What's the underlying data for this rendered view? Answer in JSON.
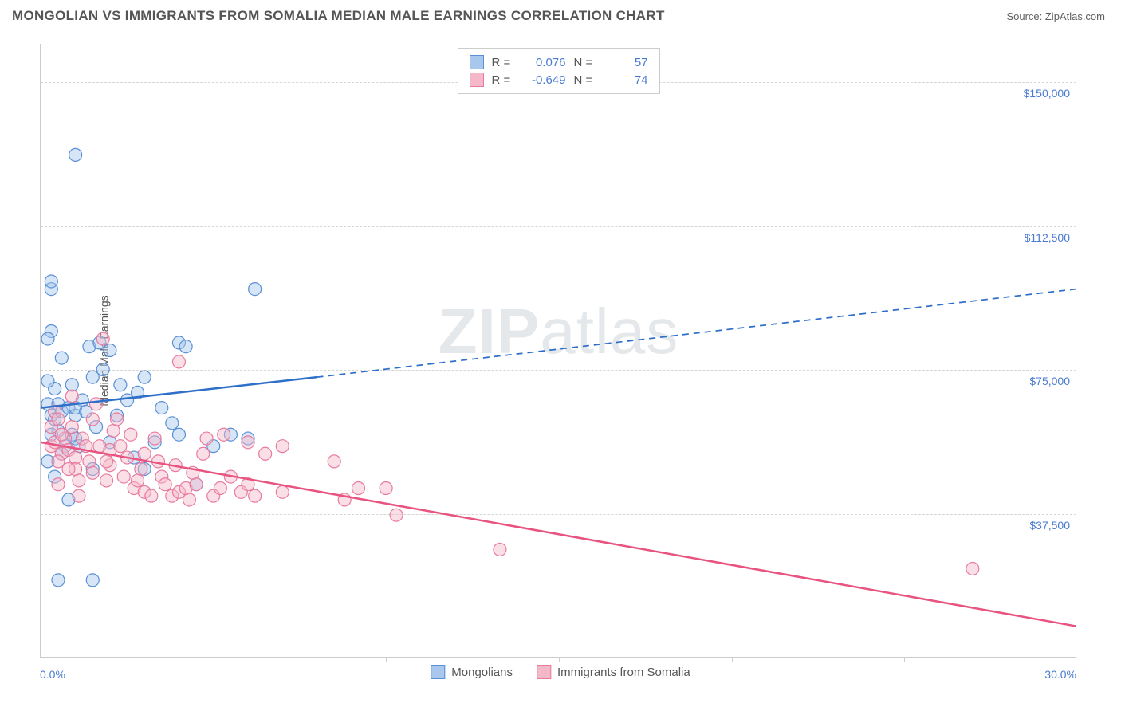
{
  "header": {
    "title": "MONGOLIAN VS IMMIGRANTS FROM SOMALIA MEDIAN MALE EARNINGS CORRELATION CHART",
    "source_prefix": "Source: ",
    "source_link": "ZipAtlas.com"
  },
  "chart": {
    "type": "scatter",
    "ylabel": "Median Male Earnings",
    "xlim": [
      0,
      30
    ],
    "ylim": [
      0,
      160000
    ],
    "x_min_label": "0.0%",
    "x_max_label": "30.0%",
    "y_ticks": [
      {
        "value": 37500,
        "label": "$37,500"
      },
      {
        "value": 75000,
        "label": "$75,000"
      },
      {
        "value": 112500,
        "label": "$112,500"
      },
      {
        "value": 150000,
        "label": "$150,000"
      }
    ],
    "x_tick_interval": 5,
    "grid_color": "#d5d5d5",
    "axis_color": "#cccccc",
    "background_color": "#ffffff",
    "marker_radius": 8,
    "marker_opacity": 0.45,
    "line_width": 2.5,
    "watermark": "ZIPatlas",
    "series": [
      {
        "name": "Mongolians",
        "color_fill": "#a7c7ec",
        "color_stroke": "#5a8fd6",
        "line_color": "#2e6fc9",
        "r_value": "0.076",
        "n_value": "57",
        "regression": {
          "x1": 0,
          "y1": 65000,
          "x2_solid": 8,
          "y2_solid": 73000,
          "x2": 30,
          "y2": 96000
        },
        "points": [
          [
            0.3,
            96000
          ],
          [
            0.2,
            66000
          ],
          [
            0.3,
            63000
          ],
          [
            0.4,
            62000
          ],
          [
            0.3,
            85000
          ],
          [
            0.2,
            83000
          ],
          [
            1.0,
            131000
          ],
          [
            1.5,
            20000
          ],
          [
            0.5,
            20000
          ],
          [
            0.3,
            98000
          ],
          [
            0.4,
            70000
          ],
          [
            0.5,
            66000
          ],
          [
            0.6,
            64000
          ],
          [
            0.2,
            72000
          ],
          [
            0.8,
            65000
          ],
          [
            0.7,
            55000
          ],
          [
            0.9,
            58000
          ],
          [
            1.0,
            63000
          ],
          [
            1.2,
            67000
          ],
          [
            0.6,
            78000
          ],
          [
            1.0,
            65000
          ],
          [
            1.3,
            64000
          ],
          [
            1.5,
            73000
          ],
          [
            1.4,
            81000
          ],
          [
            1.8,
            75000
          ],
          [
            1.7,
            82000
          ],
          [
            2.0,
            80000
          ],
          [
            2.2,
            63000
          ],
          [
            2.0,
            56000
          ],
          [
            2.5,
            67000
          ],
          [
            2.8,
            69000
          ],
          [
            3.0,
            73000
          ],
          [
            3.0,
            49000
          ],
          [
            3.5,
            65000
          ],
          [
            3.8,
            61000
          ],
          [
            4.0,
            58000
          ],
          [
            4.0,
            82000
          ],
          [
            4.2,
            81000
          ],
          [
            4.5,
            45000
          ],
          [
            5.0,
            55000
          ],
          [
            5.5,
            58000
          ],
          [
            6.2,
            96000
          ],
          [
            6.0,
            57000
          ],
          [
            0.2,
            51000
          ],
          [
            0.4,
            47000
          ],
          [
            0.8,
            41000
          ],
          [
            1.5,
            49000
          ],
          [
            1.0,
            57000
          ],
          [
            0.6,
            53000
          ],
          [
            0.5,
            59000
          ],
          [
            1.1,
            55000
          ],
          [
            0.3,
            58000
          ],
          [
            2.3,
            71000
          ],
          [
            2.7,
            52000
          ],
          [
            3.3,
            56000
          ],
          [
            1.6,
            60000
          ],
          [
            0.9,
            71000
          ]
        ]
      },
      {
        "name": "Immigrants from Somalia",
        "color_fill": "#f4b8c8",
        "color_stroke": "#e87ba0",
        "line_color": "#e8537f",
        "r_value": "-0.649",
        "n_value": "74",
        "regression": {
          "x1": 0,
          "y1": 56000,
          "x2_solid": 30,
          "y2_solid": 8000,
          "x2": 30,
          "y2": 8000
        },
        "points": [
          [
            0.3,
            55000
          ],
          [
            0.3,
            60000
          ],
          [
            0.4,
            64000
          ],
          [
            0.5,
            62000
          ],
          [
            0.4,
            56000
          ],
          [
            0.6,
            53000
          ],
          [
            0.5,
            51000
          ],
          [
            0.7,
            57000
          ],
          [
            0.8,
            54000
          ],
          [
            0.6,
            58000
          ],
          [
            0.9,
            60000
          ],
          [
            1.0,
            52000
          ],
          [
            1.0,
            49000
          ],
          [
            1.2,
            57000
          ],
          [
            1.1,
            46000
          ],
          [
            1.3,
            55000
          ],
          [
            1.4,
            51000
          ],
          [
            1.5,
            62000
          ],
          [
            1.5,
            48000
          ],
          [
            1.7,
            55000
          ],
          [
            1.8,
            83000
          ],
          [
            1.9,
            46000
          ],
          [
            2.0,
            54000
          ],
          [
            2.0,
            50000
          ],
          [
            2.1,
            59000
          ],
          [
            2.3,
            55000
          ],
          [
            2.4,
            47000
          ],
          [
            2.5,
            52000
          ],
          [
            2.6,
            58000
          ],
          [
            2.7,
            44000
          ],
          [
            2.9,
            49000
          ],
          [
            3.0,
            53000
          ],
          [
            3.0,
            43000
          ],
          [
            3.2,
            42000
          ],
          [
            3.3,
            57000
          ],
          [
            3.5,
            47000
          ],
          [
            3.6,
            45000
          ],
          [
            3.8,
            42000
          ],
          [
            3.9,
            50000
          ],
          [
            4.0,
            77000
          ],
          [
            4.0,
            43000
          ],
          [
            4.2,
            44000
          ],
          [
            4.3,
            41000
          ],
          [
            4.5,
            45000
          ],
          [
            4.7,
            53000
          ],
          [
            4.8,
            57000
          ],
          [
            5.0,
            42000
          ],
          [
            5.2,
            44000
          ],
          [
            5.3,
            58000
          ],
          [
            5.5,
            47000
          ],
          [
            5.8,
            43000
          ],
          [
            6.0,
            45000
          ],
          [
            6.0,
            56000
          ],
          [
            6.2,
            42000
          ],
          [
            6.5,
            53000
          ],
          [
            7.0,
            55000
          ],
          [
            7.0,
            43000
          ],
          [
            8.5,
            51000
          ],
          [
            8.8,
            41000
          ],
          [
            9.2,
            44000
          ],
          [
            10.0,
            44000
          ],
          [
            10.3,
            37000
          ],
          [
            13.3,
            28000
          ],
          [
            27.0,
            23000
          ],
          [
            0.9,
            68000
          ],
          [
            1.6,
            66000
          ],
          [
            2.2,
            62000
          ],
          [
            0.8,
            49000
          ],
          [
            1.1,
            42000
          ],
          [
            0.5,
            45000
          ],
          [
            1.9,
            51000
          ],
          [
            2.8,
            46000
          ],
          [
            3.4,
            51000
          ],
          [
            4.4,
            48000
          ]
        ]
      }
    ]
  },
  "legend_bottom": {
    "items": [
      {
        "label": "Mongolians",
        "fill": "#a7c7ec",
        "stroke": "#5a8fd6"
      },
      {
        "label": "Immigrants from Somalia",
        "fill": "#f4b8c8",
        "stroke": "#e87ba0"
      }
    ]
  }
}
